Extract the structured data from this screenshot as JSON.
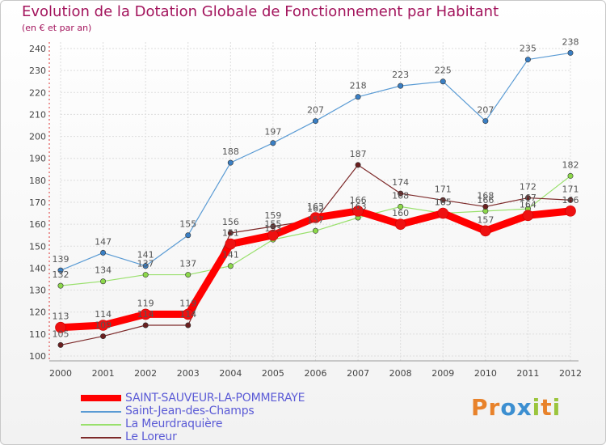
{
  "title": "Evolution de la Dotation Globale de Fonctionnement par Habitant",
  "subtitle": "(en € et par an)",
  "logo": {
    "text": "Proxiti"
  },
  "colors": {
    "title": "#a3155d",
    "axis": "#444444",
    "grid": "#dddddd",
    "legend_text": "#5b5bd6"
  },
  "chart_data": {
    "type": "line",
    "title": "Evolution de la Dotation Globale de Fonctionnement par Habitant",
    "subtitle": "(en € et par an)",
    "xlabel": "",
    "ylabel": "",
    "x": [
      "2000",
      "2001",
      "2002",
      "2003",
      "2004",
      "2005",
      "2006",
      "2007",
      "2008",
      "2009",
      "2010",
      "2011",
      "2012"
    ],
    "ylim": [
      100,
      240
    ],
    "yticks": [
      100,
      110,
      120,
      130,
      140,
      150,
      160,
      170,
      180,
      190,
      200,
      210,
      220,
      230,
      240
    ],
    "legend_position": "bottom-left",
    "series": [
      {
        "name": "SAINT-SAUVEUR-LA-POMMERAYE",
        "color": "#ff0000",
        "marker": "#ee1111",
        "emphasis": true,
        "values": [
          113,
          114,
          119,
          119,
          151,
          155,
          163,
          166,
          160,
          165,
          157,
          164,
          166
        ]
      },
      {
        "name": "Saint-Jean-des-Champs",
        "color": "#5a9bd4",
        "marker": "#3a7fc4",
        "values": [
          139,
          147,
          141,
          155,
          188,
          197,
          207,
          218,
          223,
          225,
          207,
          235,
          238
        ]
      },
      {
        "name": "La Meurdraquière",
        "color": "#99e06c",
        "marker": "#8cd84a",
        "values": [
          132,
          134,
          137,
          137,
          141,
          153,
          157,
          163,
          168,
          165,
          166,
          167,
          182
        ]
      },
      {
        "name": "Le Loreur",
        "color": "#7d2a2a",
        "marker": "#6a1f1f",
        "values": [
          105,
          109,
          114,
          114,
          156,
          159,
          162,
          187,
          174,
          171,
          168,
          172,
          171
        ]
      }
    ]
  }
}
